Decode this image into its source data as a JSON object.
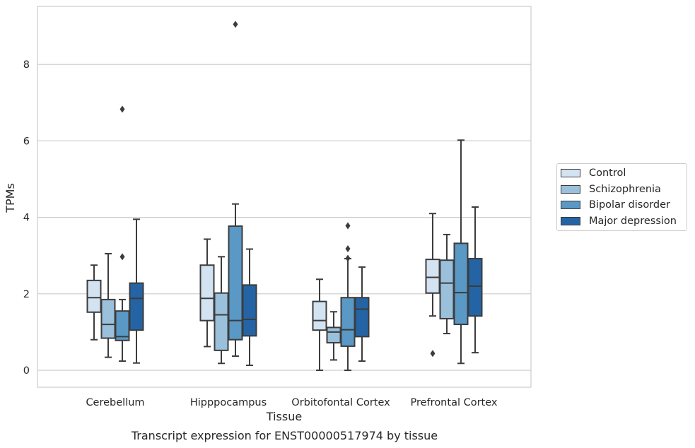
{
  "chart_data": {
    "type": "box",
    "title": "",
    "caption": "Transcript expression for ENST00000517974 by tissue",
    "xlabel": "Tissue",
    "ylabel": "TPMs",
    "ylim": [
      -0.45,
      9.5
    ],
    "yticks": [
      0,
      2,
      4,
      6,
      8
    ],
    "grid": true,
    "legend_position": "right",
    "categories": [
      "Cerebellum",
      "Hipppocampus",
      "Orbitofontal Cortex",
      "Prefrontal Cortex"
    ],
    "series": [
      {
        "name": "Control",
        "color": "#d4e3f1",
        "boxes": [
          {
            "whisker_low": 0.8,
            "q1": 1.52,
            "median": 1.9,
            "q3": 2.35,
            "whisker_high": 2.75,
            "outliers": []
          },
          {
            "whisker_low": 0.62,
            "q1": 1.3,
            "median": 1.88,
            "q3": 2.75,
            "whisker_high": 3.43,
            "outliers": []
          },
          {
            "whisker_low": 0.0,
            "q1": 1.05,
            "median": 1.3,
            "q3": 1.8,
            "whisker_high": 2.38,
            "outliers": []
          },
          {
            "whisker_low": 1.42,
            "q1": 2.02,
            "median": 2.43,
            "q3": 2.9,
            "whisker_high": 4.1,
            "outliers": [
              0.44
            ]
          }
        ]
      },
      {
        "name": "Schizophrenia",
        "color": "#9ac0db",
        "boxes": [
          {
            "whisker_low": 0.34,
            "q1": 0.84,
            "median": 1.2,
            "q3": 1.85,
            "whisker_high": 3.05,
            "outliers": []
          },
          {
            "whisker_low": 0.18,
            "q1": 0.52,
            "median": 1.45,
            "q3": 2.02,
            "whisker_high": 2.97,
            "outliers": []
          },
          {
            "whisker_low": 0.27,
            "q1": 0.72,
            "median": 1.0,
            "q3": 1.12,
            "whisker_high": 1.53,
            "outliers": []
          },
          {
            "whisker_low": 0.96,
            "q1": 1.35,
            "median": 2.28,
            "q3": 2.88,
            "whisker_high": 3.55,
            "outliers": []
          }
        ]
      },
      {
        "name": "Bipolar disorder",
        "color": "#5a98c6",
        "boxes": [
          {
            "whisker_low": 0.24,
            "q1": 0.78,
            "median": 0.88,
            "q3": 1.55,
            "whisker_high": 1.85,
            "outliers": [
              2.97,
              6.83
            ]
          },
          {
            "whisker_low": 0.37,
            "q1": 0.8,
            "median": 1.3,
            "q3": 3.77,
            "whisker_high": 4.35,
            "outliers": [
              9.05
            ]
          },
          {
            "whisker_low": 0.0,
            "q1": 0.63,
            "median": 1.06,
            "q3": 1.9,
            "whisker_high": 2.92,
            "outliers": [
              2.93,
              3.18,
              3.78
            ]
          },
          {
            "whisker_low": 0.18,
            "q1": 1.2,
            "median": 2.03,
            "q3": 3.32,
            "whisker_high": 6.02,
            "outliers": []
          }
        ]
      },
      {
        "name": "Major depression",
        "color": "#2464a5",
        "boxes": [
          {
            "whisker_low": 0.19,
            "q1": 1.05,
            "median": 1.88,
            "q3": 2.28,
            "whisker_high": 3.95,
            "outliers": []
          },
          {
            "whisker_low": 0.13,
            "q1": 0.9,
            "median": 1.33,
            "q3": 2.23,
            "whisker_high": 3.17,
            "outliers": []
          },
          {
            "whisker_low": 0.24,
            "q1": 0.88,
            "median": 1.6,
            "q3": 1.9,
            "whisker_high": 2.7,
            "outliers": []
          },
          {
            "whisker_low": 0.46,
            "q1": 1.42,
            "median": 2.2,
            "q3": 2.92,
            "whisker_high": 4.27,
            "outliers": []
          }
        ]
      }
    ]
  }
}
